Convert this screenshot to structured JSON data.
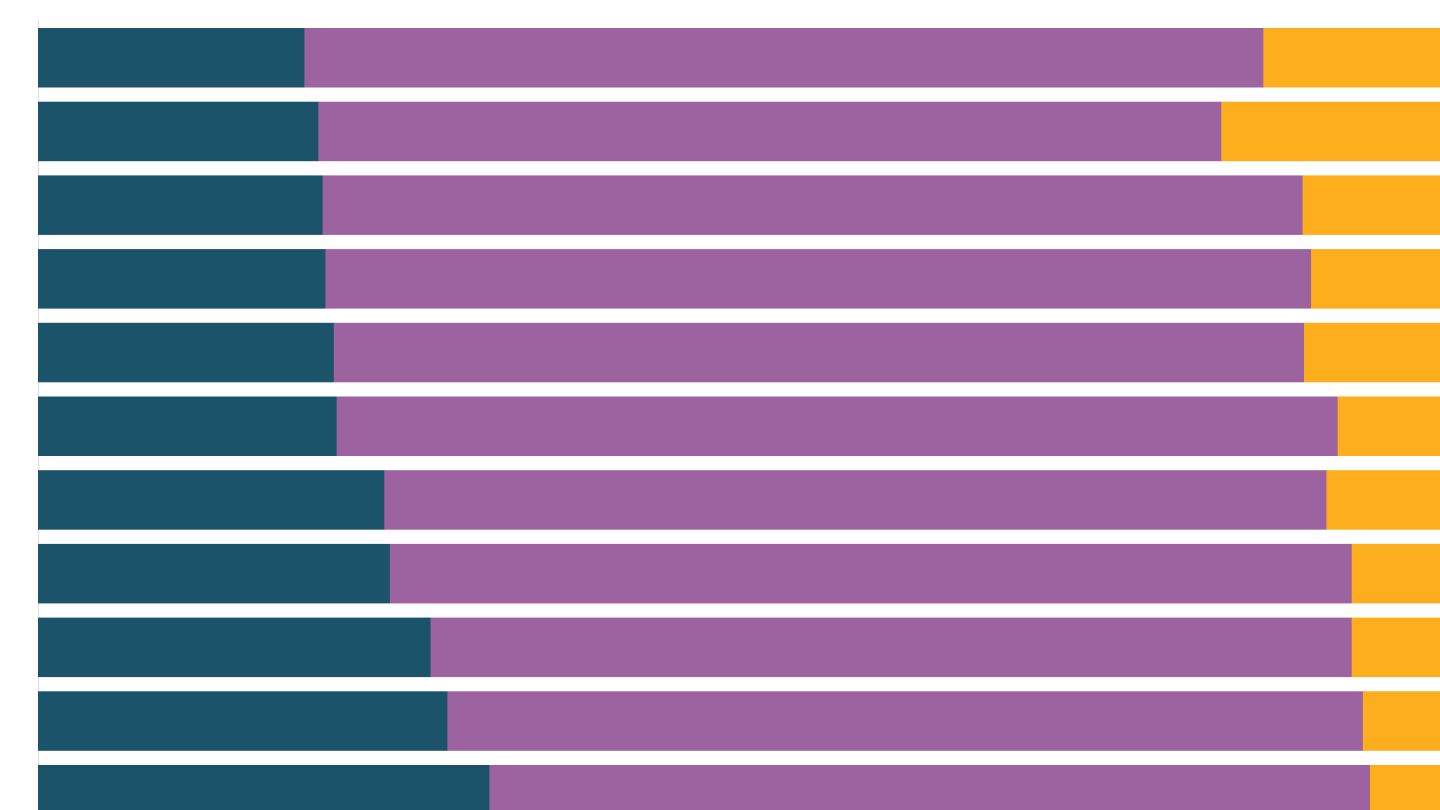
{
  "chart_data": {
    "type": "bar",
    "orientation": "horizontal",
    "stacked": true,
    "normalized_percent": true,
    "xlim": [
      0,
      100
    ],
    "grid": false,
    "legend": "none",
    "colors": [
      "#1b536b",
      "#9d63a0",
      "#fdae1d"
    ],
    "series": [
      {
        "values": [
          19.0,
          20.0,
          20.3,
          20.5,
          21.1,
          21.3,
          24.7,
          25.1,
          28.0,
          29.2,
          32.2
        ]
      },
      {
        "values": [
          68.4,
          64.4,
          69.9,
          70.3,
          69.2,
          71.4,
          67.2,
          68.6,
          65.7,
          65.3,
          62.8
        ]
      },
      {
        "values": [
          12.6,
          15.6,
          9.8,
          9.2,
          9.7,
          7.3,
          8.1,
          6.3,
          6.3,
          5.5,
          5.0
        ]
      }
    ]
  }
}
